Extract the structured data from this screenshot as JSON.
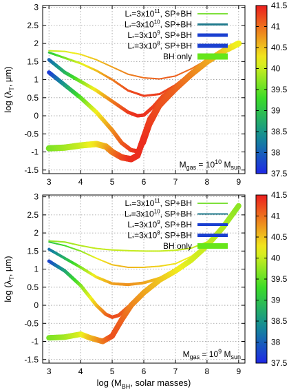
{
  "chart_data": [
    {
      "type": "line",
      "xlabel": "",
      "ylabel": "log (λ_T, μm)",
      "xlim": [
        2.8,
        9.2
      ],
      "ylim": [
        -1.6,
        3.05
      ],
      "xticks": [
        3,
        4,
        5,
        6,
        7,
        8,
        9
      ],
      "yticks": [
        -1.5,
        -1,
        -0.5,
        0,
        0.5,
        1,
        1.5,
        2,
        2.5,
        3
      ],
      "grid": true,
      "legend_position": "top-right",
      "annotation": {
        "base": "M",
        "sub1": "gas",
        "mid": " = 10",
        "sup": "10",
        "tail": " M",
        "sub2": "sun"
      },
      "colorbar": {
        "range": [
          37.5,
          41.5
        ],
        "ticks": [
          "41.5",
          "41",
          "40.5",
          "40",
          "39.5",
          "39",
          "38.5",
          "38",
          "37.5"
        ]
      },
      "series": [
        {
          "name": "L*=3x10^11, SP+BH",
          "label": {
            "pre": "L",
            "sub": "*",
            "mid": "=3x10",
            "sup": "11",
            "post": ", SP+BH"
          },
          "legend_color": "#7de03a",
          "width": 2,
          "x": [
            3.0,
            3.5,
            4.0,
            4.5,
            5.0,
            5.5,
            6.0,
            6.5,
            7.0,
            7.5,
            8.0,
            8.5,
            9.0
          ],
          "y": [
            1.8,
            1.78,
            1.7,
            1.55,
            1.35,
            1.15,
            1.05,
            1.02,
            1.1,
            1.3,
            1.55,
            1.78,
            2.0
          ],
          "c": [
            40.0,
            40.1,
            40.3,
            40.5,
            40.7,
            40.9,
            41.0,
            41.1,
            41.1,
            41.0,
            40.8,
            40.5,
            40.2
          ]
        },
        {
          "name": "L*=3x10^10, SP+BH",
          "label": {
            "pre": "L",
            "sub": "*",
            "mid": "=3x10",
            "sup": "10",
            "post": ", SP+BH"
          },
          "legend_color": "#1f7a8c",
          "width": 3,
          "x": [
            3.0,
            3.5,
            4.0,
            4.5,
            5.0,
            5.5,
            6.0,
            6.5,
            7.0,
            7.5,
            8.0,
            8.5,
            9.0
          ],
          "y": [
            1.75,
            1.6,
            1.45,
            1.25,
            1.0,
            0.7,
            0.55,
            0.6,
            0.85,
            1.2,
            1.55,
            1.78,
            2.0
          ],
          "c": [
            39.0,
            39.6,
            40.1,
            40.5,
            40.9,
            41.2,
            41.3,
            41.3,
            41.2,
            41.0,
            40.8,
            40.5,
            40.2
          ]
        },
        {
          "name": "L*=3x10^9, SP+BH",
          "label": {
            "pre": "L",
            "sub": "*",
            "mid": "=3x10",
            "sup": "9",
            "post": ", SP+BH"
          },
          "legend_color": "#1a3fd0",
          "width": 5,
          "x": [
            3.0,
            3.5,
            4.0,
            4.5,
            5.0,
            5.5,
            5.8,
            6.0,
            6.3,
            6.6,
            7.0,
            7.5,
            8.0,
            8.5,
            9.0
          ],
          "y": [
            1.55,
            1.2,
            0.95,
            0.7,
            0.4,
            0.1,
            0.0,
            0.02,
            0.25,
            0.55,
            0.8,
            1.15,
            1.5,
            1.78,
            2.0
          ],
          "c": [
            38.0,
            38.8,
            39.6,
            40.3,
            40.9,
            41.3,
            41.4,
            41.4,
            41.3,
            41.2,
            41.1,
            40.9,
            40.7,
            40.5,
            40.2
          ]
        },
        {
          "name": "L*=3x10^8, SP+BH",
          "label": {
            "pre": "L",
            "sub": "*",
            "mid": "=3x10",
            "sup": "8",
            "post": ", SP+BH"
          },
          "legend_color": "#1a3fd0",
          "width": 6,
          "x": [
            3.0,
            3.5,
            4.0,
            4.5,
            5.0,
            5.3,
            5.6,
            5.8,
            6.0,
            6.2,
            6.5,
            7.0,
            7.5,
            8.0,
            8.5,
            9.0
          ],
          "y": [
            1.2,
            0.85,
            0.5,
            0.1,
            -0.4,
            -0.75,
            -0.95,
            -0.98,
            -0.75,
            -0.25,
            0.25,
            0.75,
            1.15,
            1.5,
            1.78,
            2.0
          ],
          "c": [
            37.6,
            38.5,
            39.4,
            40.2,
            40.8,
            41.1,
            41.3,
            41.4,
            41.4,
            41.3,
            41.2,
            41.1,
            40.9,
            40.7,
            40.5,
            40.2
          ]
        },
        {
          "name": "BH only",
          "label": {
            "pre": "BH only",
            "sub": "",
            "mid": "",
            "sup": "",
            "post": ""
          },
          "legend_color": "#66e61a",
          "width": 9,
          "x": [
            3.0,
            3.5,
            4.0,
            4.5,
            4.8,
            5.0,
            5.3,
            5.6,
            5.8,
            6.0,
            6.2,
            6.5,
            7.0,
            7.5,
            8.0,
            8.5,
            9.0
          ],
          "y": [
            -0.9,
            -0.88,
            -0.82,
            -0.78,
            -0.85,
            -1.0,
            -1.15,
            -1.2,
            -1.1,
            -0.6,
            -0.1,
            0.3,
            0.75,
            1.15,
            1.5,
            1.78,
            2.0
          ],
          "c": [
            39.6,
            39.8,
            40.0,
            40.3,
            40.6,
            40.9,
            41.2,
            41.4,
            41.4,
            41.4,
            41.3,
            41.2,
            41.1,
            40.9,
            40.7,
            40.5,
            40.2
          ]
        }
      ]
    },
    {
      "type": "line",
      "xlabel": "log (M_BH, solar masses)",
      "ylabel": "log (λ_T, μm)",
      "xlim": [
        2.8,
        9.2
      ],
      "ylim": [
        -1.6,
        3.05
      ],
      "xticks": [
        3,
        4,
        5,
        6,
        7,
        8,
        9
      ],
      "yticks": [
        -1.5,
        -1,
        -0.5,
        0,
        0.5,
        1,
        1.5,
        2,
        2.5,
        3
      ],
      "grid": true,
      "legend_position": "top-right",
      "annotation": {
        "base": "M",
        "sub1": "gas",
        "mid": " = 10",
        "sup": "9",
        "tail": " M",
        "sub2": "sun"
      },
      "colorbar": {
        "range": [
          37.5,
          41.5
        ],
        "ticks": [
          "41.5",
          "41",
          "40.5",
          "40",
          "39.5",
          "39",
          "38.5",
          "38",
          "37.5"
        ]
      },
      "series": [
        {
          "name": "L*=3x10^11, SP+BH",
          "label": {
            "pre": "L",
            "sub": "*",
            "mid": "=3x10",
            "sup": "11",
            "post": ", SP+BH"
          },
          "legend_color": "#7de03a",
          "width": 2,
          "x": [
            3.0,
            3.5,
            4.0,
            4.5,
            5.0,
            5.5,
            6.0,
            6.5,
            7.0,
            7.5,
            8.0,
            8.5,
            9.0
          ],
          "y": [
            1.78,
            1.75,
            1.65,
            1.57,
            1.53,
            1.51,
            1.5,
            1.5,
            1.52,
            1.58,
            1.75,
            2.15,
            2.75
          ],
          "c": [
            39.7,
            39.8,
            39.9,
            40.0,
            40.0,
            40.0,
            40.0,
            40.0,
            40.0,
            40.0,
            40.0,
            39.9,
            39.7
          ]
        },
        {
          "name": "L*=3x10^10, SP+BH",
          "label": {
            "pre": "L",
            "sub": "*",
            "mid": "=3x10",
            "sup": "10",
            "post": ", SP+BH"
          },
          "legend_color": "#1f7a8c",
          "width": 2,
          "x": [
            3.0,
            3.5,
            4.0,
            4.5,
            5.0,
            5.5,
            6.0,
            6.5,
            7.0,
            7.5,
            8.0,
            8.5,
            9.0
          ],
          "y": [
            1.75,
            1.65,
            1.5,
            1.3,
            1.12,
            1.05,
            1.05,
            1.08,
            1.15,
            1.35,
            1.7,
            2.15,
            2.75
          ],
          "c": [
            39.0,
            39.3,
            39.7,
            40.2,
            40.5,
            40.6,
            40.5,
            40.4,
            40.3,
            40.2,
            40.0,
            39.9,
            39.7
          ]
        },
        {
          "name": "L*=3x10^9, SP+BH",
          "label": {
            "pre": "L",
            "sub": "*",
            "mid": "=3x10",
            "sup": "9",
            "post": ", SP+BH"
          },
          "legend_color": "#1a3fd0",
          "width": 4,
          "x": [
            3.0,
            3.5,
            4.0,
            4.5,
            5.0,
            5.5,
            6.0,
            6.5,
            7.0,
            7.5,
            8.0,
            8.5,
            9.0
          ],
          "y": [
            1.55,
            1.3,
            1.05,
            0.78,
            0.6,
            0.57,
            0.62,
            0.75,
            0.95,
            1.25,
            1.65,
            2.15,
            2.75
          ],
          "c": [
            38.1,
            38.8,
            39.6,
            40.3,
            40.7,
            40.8,
            40.7,
            40.5,
            40.3,
            40.1,
            40.0,
            39.9,
            39.7
          ]
        },
        {
          "name": "L*=3x10^8, SP+BH",
          "label": {
            "pre": "L",
            "sub": "*",
            "mid": "=3x10",
            "sup": "8",
            "post": ", SP+BH"
          },
          "legend_color": "#1a3fd0",
          "width": 5,
          "x": [
            3.0,
            3.5,
            4.0,
            4.5,
            4.8,
            5.0,
            5.2,
            5.5,
            6.0,
            6.5,
            7.0,
            7.5,
            8.0,
            8.5,
            9.0
          ],
          "y": [
            1.22,
            0.95,
            0.55,
            0.0,
            -0.25,
            -0.33,
            -0.28,
            -0.05,
            0.35,
            0.7,
            0.95,
            1.25,
            1.65,
            2.15,
            2.75
          ],
          "c": [
            37.7,
            38.6,
            39.6,
            40.5,
            41.0,
            41.2,
            41.2,
            41.0,
            40.7,
            40.5,
            40.3,
            40.1,
            40.0,
            39.9,
            39.7
          ]
        },
        {
          "name": "BH only",
          "label": {
            "pre": "BH only",
            "sub": "",
            "mid": "",
            "sup": "",
            "post": ""
          },
          "legend_color": "#66e61a",
          "width": 8,
          "x": [
            3.0,
            3.5,
            4.0,
            4.3,
            4.7,
            5.0,
            5.3,
            5.6,
            6.0,
            6.5,
            7.0,
            7.5,
            8.0,
            8.5,
            9.0
          ],
          "y": [
            -0.9,
            -0.88,
            -0.8,
            -0.9,
            -1.0,
            -0.85,
            -0.4,
            0.0,
            0.35,
            0.7,
            0.95,
            1.25,
            1.65,
            2.15,
            2.75
          ],
          "c": [
            39.6,
            39.8,
            40.1,
            40.5,
            40.9,
            41.2,
            41.1,
            40.9,
            40.7,
            40.5,
            40.3,
            40.1,
            40.0,
            39.9,
            39.7
          ]
        }
      ]
    }
  ]
}
